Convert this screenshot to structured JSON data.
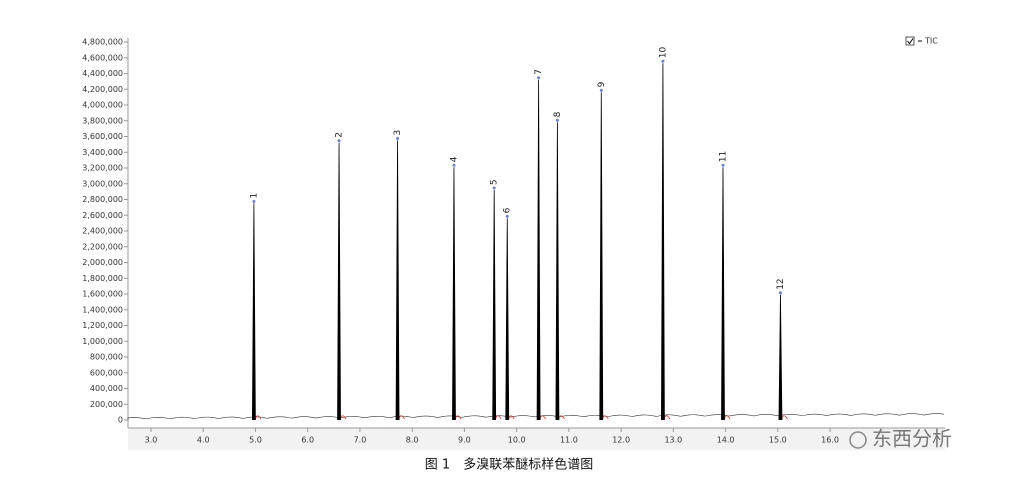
{
  "chart_data": {
    "type": "chromatogram",
    "caption": "图 1　多溴联苯醚标样色谱图",
    "watermark": "东西分析",
    "legend": "top-right",
    "series": [
      {
        "name": "TIC",
        "color": "#000000",
        "x": [
          4.97,
          6.6,
          7.72,
          8.8,
          9.57,
          9.82,
          10.42,
          10.78,
          11.62,
          12.8,
          13.95,
          15.05
        ],
        "values": [
          2750000,
          3520000,
          3550000,
          3210000,
          2920000,
          2560000,
          4320000,
          3780000,
          4160000,
          4530000,
          3210000,
          1590000
        ],
        "labels": [
          "1",
          "2",
          "3",
          "4",
          "5",
          "6",
          "7",
          "8",
          "9",
          "10",
          "11",
          "12"
        ]
      }
    ],
    "xlim": [
      2.56,
      18.2
    ],
    "xticks": [
      {
        "value": 3,
        "label": "3.0"
      },
      {
        "value": 4,
        "label": "4.0"
      },
      {
        "value": 5,
        "label": "5.0"
      },
      {
        "value": 6,
        "label": "6.0"
      },
      {
        "value": 7,
        "label": "7.0"
      },
      {
        "value": 8,
        "label": "8.0"
      },
      {
        "value": 9,
        "label": "9.0"
      },
      {
        "value": 10,
        "label": "10.0"
      },
      {
        "value": 11,
        "label": "11.0"
      },
      {
        "value": 12,
        "label": "12.0"
      },
      {
        "value": 13,
        "label": "13.0"
      },
      {
        "value": 14,
        "label": "14.0"
      },
      {
        "value": 15,
        "label": "15.0"
      },
      {
        "value": 16,
        "label": "16.0"
      }
    ],
    "ylim": [
      0,
      4800000
    ],
    "yticks": [
      0,
      {
        "value": 200000,
        "label": "200,000"
      },
      {
        "value": 400000,
        "label": "400,000"
      },
      {
        "value": 600000,
        "label": "600,000"
      },
      {
        "value": 800000,
        "label": "800,000"
      },
      {
        "value": 1000000,
        "label": "1,000,000"
      },
      {
        "value": 1200000,
        "label": "1,200,000"
      },
      {
        "value": 1400000,
        "label": "1,400,000"
      },
      {
        "value": 1600000,
        "label": "1,600,000"
      },
      {
        "value": 1800000,
        "label": "1,800,000"
      },
      {
        "value": 2000000,
        "label": "2,000,000"
      },
      {
        "value": 2200000,
        "label": "2,200,000"
      },
      {
        "value": 2400000,
        "label": "2,400,000"
      },
      {
        "value": 2600000,
        "label": "2,600,000"
      },
      {
        "value": 2800000,
        "label": "2,800,000"
      },
      {
        "value": 3000000,
        "label": "3,000,000"
      },
      {
        "value": 3200000,
        "label": "3,200,000"
      },
      {
        "value": 3400000,
        "label": "3,400,000"
      },
      {
        "value": 3600000,
        "label": "3,600,000"
      },
      {
        "value": 3800000,
        "label": "3,800,000"
      },
      {
        "value": 4000000,
        "label": "4,000,000"
      },
      {
        "value": 4200000,
        "label": "4,200,000"
      },
      {
        "value": 4400000,
        "label": "4,400,000"
      },
      {
        "value": 4600000,
        "label": "4,600,000"
      },
      {
        "value": 4800000,
        "label": "4,800,000"
      }
    ]
  }
}
